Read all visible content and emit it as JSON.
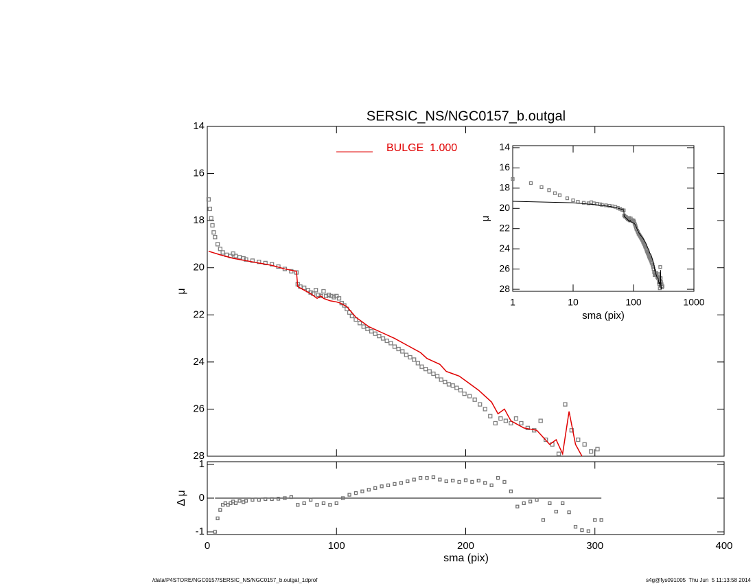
{
  "chart_data": [
    {
      "type": "scatter",
      "title": "SERSIC_NS/NGC0157_b.outgal",
      "ylabel": "μ",
      "xlim": [
        0,
        400
      ],
      "xticks": [
        0,
        100,
        200,
        300,
        400
      ],
      "ylim": [
        28,
        14
      ],
      "yticks": [
        14,
        16,
        18,
        20,
        22,
        24,
        26,
        28
      ],
      "series": [
        {
          "color": "#808080",
          "marker": "square",
          "x": [
            1,
            2,
            3,
            4,
            5,
            6,
            8,
            10,
            12,
            15,
            18,
            20,
            22,
            25,
            28,
            30,
            35,
            40,
            45,
            50,
            55,
            60,
            65,
            69,
            70,
            72,
            75,
            78,
            80,
            82,
            84,
            86,
            88,
            90,
            92,
            94,
            96,
            98,
            100,
            102,
            104,
            106,
            108,
            110,
            112,
            115,
            118,
            121,
            124,
            127,
            130,
            133,
            136,
            139,
            142,
            145,
            148,
            151,
            154,
            157,
            160,
            163,
            166,
            169,
            172,
            175,
            178,
            181,
            184,
            187,
            190,
            193,
            196,
            199,
            203,
            207,
            211,
            215,
            219,
            223,
            227,
            231,
            235,
            239,
            243,
            248,
            253,
            258,
            262,
            267,
            272,
            277,
            282,
            287,
            292,
            297,
            302
          ],
          "values": [
            17.1,
            17.5,
            17.9,
            18.2,
            18.5,
            18.7,
            19.0,
            19.2,
            19.35,
            19.45,
            19.5,
            19.4,
            19.5,
            19.55,
            19.6,
            19.65,
            19.7,
            19.75,
            19.8,
            19.85,
            19.95,
            20.05,
            20.15,
            20.2,
            20.7,
            20.8,
            20.85,
            20.95,
            21.05,
            21.1,
            20.95,
            21.15,
            21.2,
            21.0,
            21.2,
            21.15,
            21.2,
            21.25,
            21.2,
            21.3,
            21.5,
            21.6,
            21.75,
            21.9,
            22.05,
            22.2,
            22.35,
            22.5,
            22.6,
            22.7,
            22.8,
            22.9,
            23.0,
            23.1,
            23.2,
            23.35,
            23.45,
            23.55,
            23.7,
            23.8,
            23.9,
            24.05,
            24.2,
            24.3,
            24.4,
            24.5,
            24.6,
            24.75,
            24.85,
            24.95,
            25.0,
            25.1,
            25.2,
            25.35,
            25.45,
            25.6,
            25.8,
            26.0,
            26.3,
            26.6,
            26.4,
            26.5,
            26.6,
            26.4,
            26.6,
            26.8,
            26.9,
            26.5,
            27.3,
            27.5,
            27.9,
            25.8,
            26.9,
            27.3,
            27.5,
            27.8,
            27.7
          ]
        },
        {
          "name": "BULGE  1.000",
          "color": "#e00000",
          "marker": "line",
          "x": [
            1,
            10,
            20,
            30,
            40,
            50,
            60,
            69,
            70,
            75,
            80,
            85,
            88,
            90,
            95,
            100,
            103,
            108,
            115,
            125,
            135,
            145,
            155,
            165,
            170,
            180,
            185,
            190,
            195,
            200,
            210,
            220,
            225,
            230,
            235,
            245,
            255,
            265,
            270,
            275,
            280,
            285,
            290
          ],
          "values": [
            19.3,
            19.45,
            19.6,
            19.7,
            19.8,
            19.9,
            20.05,
            20.15,
            20.8,
            20.95,
            21.1,
            21.3,
            21.2,
            21.3,
            21.4,
            21.45,
            21.5,
            21.65,
            22.1,
            22.5,
            22.75,
            23.0,
            23.3,
            23.6,
            23.85,
            24.1,
            24.4,
            24.5,
            24.6,
            24.8,
            25.2,
            25.7,
            26.2,
            26.0,
            26.5,
            26.8,
            26.9,
            27.5,
            27.3,
            27.9,
            26.1,
            27.5,
            28.0
          ]
        }
      ]
    },
    {
      "type": "residual",
      "ylabel": "Δ μ",
      "xlabel": "sma (pix)",
      "xlim": [
        0,
        400
      ],
      "xticks": [
        0,
        100,
        200,
        300,
        400
      ],
      "ylim": [
        -1.08,
        1.08
      ],
      "yticks": [
        -1,
        0,
        1
      ],
      "reference_line": 0,
      "color": "#707070",
      "x": [
        6,
        8,
        10,
        12,
        14,
        16,
        18,
        20,
        22,
        25,
        28,
        30,
        35,
        40,
        45,
        50,
        55,
        60,
        65,
        70,
        75,
        80,
        85,
        90,
        95,
        100,
        105,
        110,
        115,
        120,
        125,
        130,
        135,
        140,
        145,
        150,
        155,
        160,
        165,
        170,
        175,
        180,
        185,
        190,
        195,
        200,
        205,
        210,
        215,
        220,
        225,
        230,
        235,
        240,
        245,
        250,
        255,
        260,
        265,
        270,
        275,
        280,
        285,
        290,
        295,
        300,
        305
      ],
      "values": [
        -1.0,
        -0.6,
        -0.35,
        -0.2,
        -0.15,
        -0.2,
        -0.15,
        -0.1,
        -0.15,
        -0.08,
        -0.12,
        -0.08,
        -0.05,
        -0.05,
        -0.03,
        -0.03,
        -0.02,
        0.0,
        0.03,
        -0.2,
        -0.15,
        -0.05,
        -0.2,
        -0.15,
        -0.2,
        -0.15,
        0.0,
        0.1,
        0.15,
        0.2,
        0.25,
        0.3,
        0.35,
        0.38,
        0.42,
        0.45,
        0.5,
        0.55,
        0.6,
        0.6,
        0.62,
        0.55,
        0.5,
        0.52,
        0.48,
        0.53,
        0.48,
        0.52,
        0.45,
        0.38,
        0.6,
        0.48,
        0.2,
        -0.25,
        -0.15,
        -0.1,
        -0.05,
        -0.65,
        -0.15,
        -0.4,
        -0.15,
        -0.42,
        -0.85,
        -0.95,
        -0.98,
        -0.65,
        -0.65
      ]
    },
    {
      "type": "inset",
      "xlabel": "sma (pix)",
      "ylabel": "μ",
      "log_x": true,
      "line_color": "#000000",
      "xlim": [
        1,
        1000
      ],
      "xticks": [
        1,
        10,
        100,
        1000
      ],
      "ylim": [
        28.2,
        13.8
      ],
      "yticks": [
        14,
        16,
        18,
        20,
        22,
        24,
        26,
        28
      ]
    }
  ],
  "footer": {
    "left": "/data/P4STORE/NGC0157/SERSIC_NS/NGC0157_b.outgal_1dprof",
    "right": "s4g@fys091005  Thu Jun  5 11:13:58 2014"
  }
}
